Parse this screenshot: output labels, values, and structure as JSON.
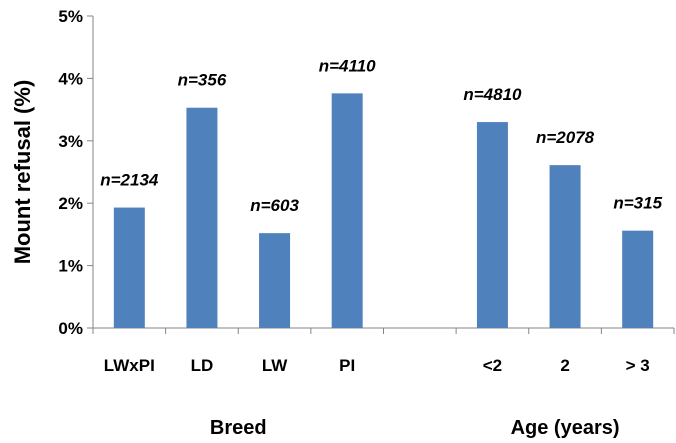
{
  "chart_data": {
    "type": "bar",
    "ylabel": "Mount refusal (%)",
    "ylim": [
      0,
      5
    ],
    "yticks": [
      "0%",
      "1%",
      "2%",
      "3%",
      "4%",
      "5%"
    ],
    "grid": false,
    "categories": [
      "LWxPI",
      "LD",
      "LW",
      "PI",
      "",
      "<2",
      "2",
      "> 3"
    ],
    "values": [
      1.93,
      3.53,
      1.52,
      3.76,
      null,
      3.3,
      2.61,
      1.56
    ],
    "data_labels": [
      "n=2134",
      "n=356",
      "n=603",
      "n=4110",
      "",
      "n=4810",
      "n=2078",
      "n=315"
    ],
    "groups": [
      {
        "label": "Breed",
        "categories": [
          "LWxPI",
          "LD",
          "LW",
          "PI"
        ]
      },
      {
        "label": "Age (years)",
        "categories": [
          "<2",
          "2",
          "> 3"
        ]
      }
    ],
    "bar_color": "#4F81BD"
  }
}
